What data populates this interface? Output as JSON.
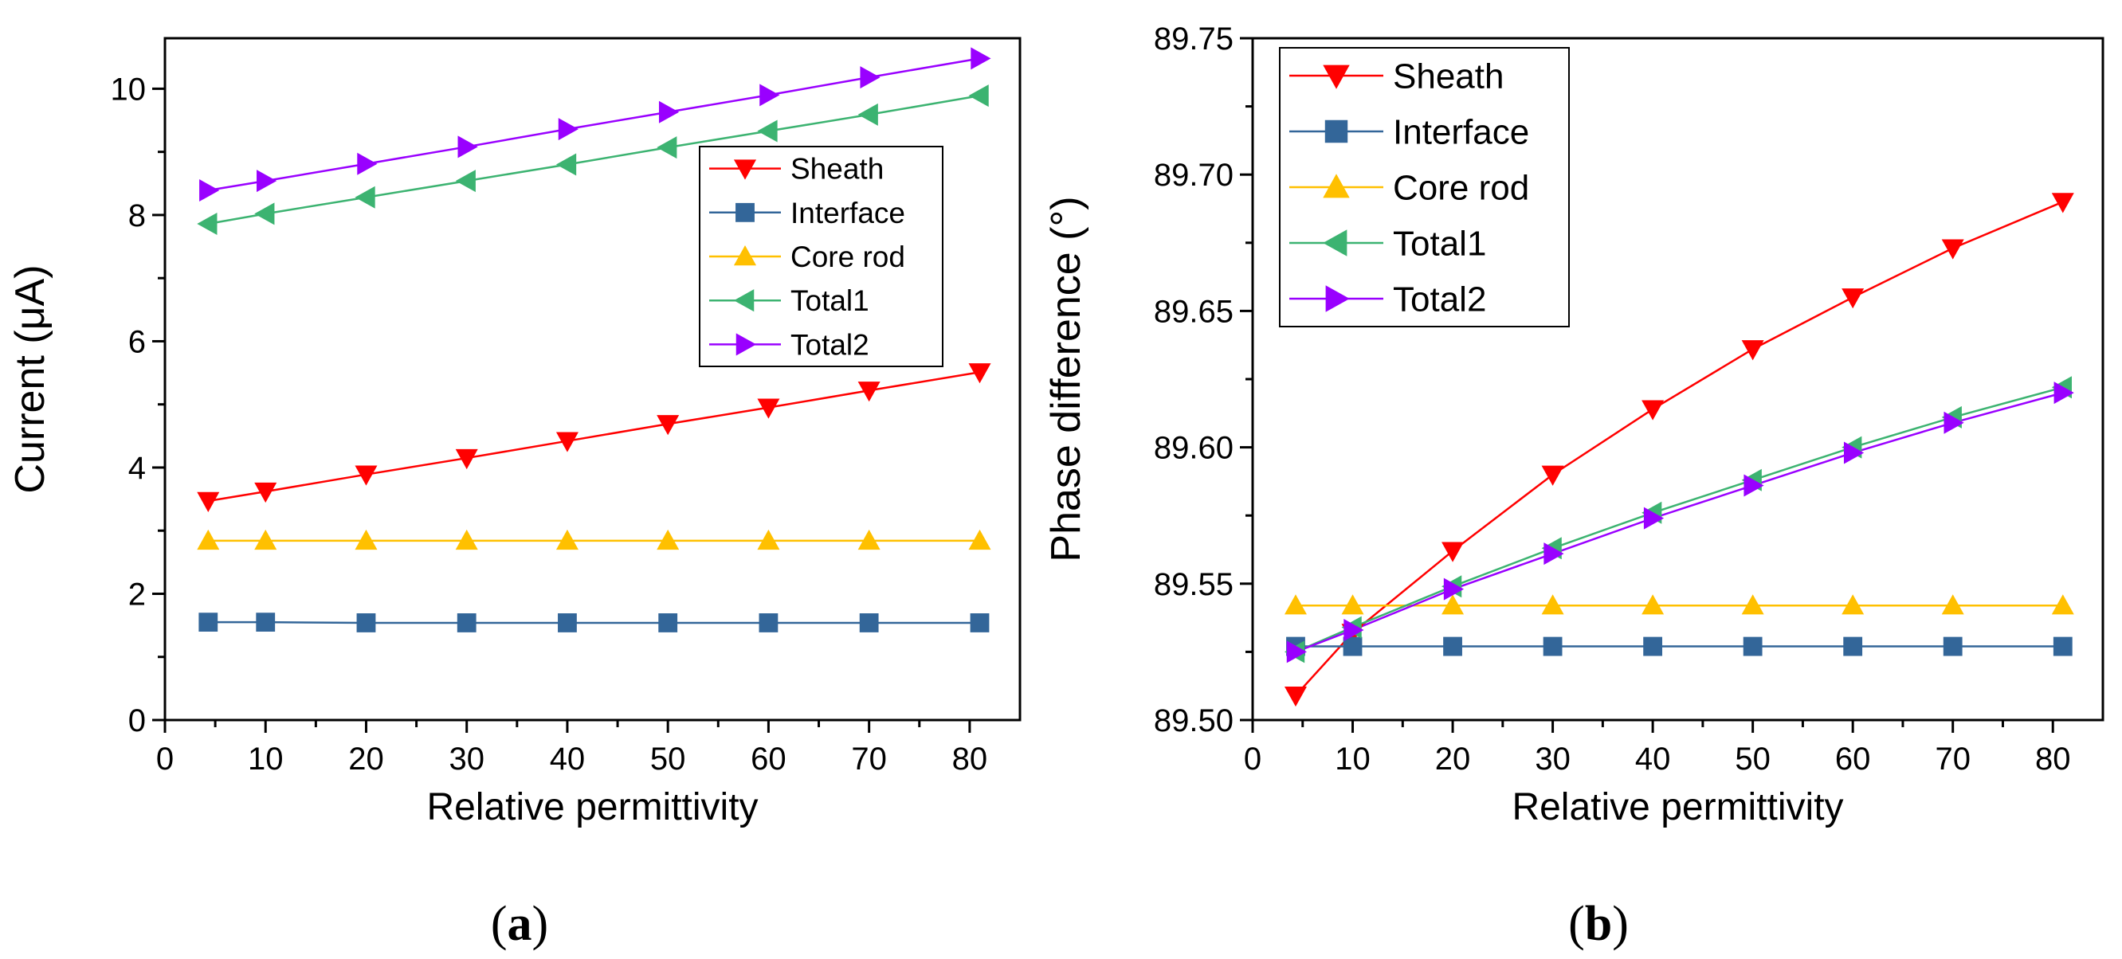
{
  "chart_data": [
    {
      "type": "line",
      "panel_label": "(a)",
      "panel_letter": "a",
      "xlabel": "Relative permittivity",
      "ylabel": "Current (μA)",
      "xlim": [
        0,
        85
      ],
      "ylim": [
        0,
        10.8
      ],
      "xticks": [
        0,
        10,
        20,
        30,
        40,
        50,
        60,
        70,
        80
      ],
      "yticks": [
        0,
        2,
        4,
        6,
        8,
        10
      ],
      "ytick_decimals": 0,
      "x": [
        4.3,
        10,
        20,
        30,
        40,
        50,
        60,
        70,
        81
      ],
      "legend_position": "right",
      "series": [
        {
          "name": "Sheath",
          "color": "#ff0000",
          "marker": "triangle-down",
          "values": [
            3.47,
            3.62,
            3.89,
            4.15,
            4.42,
            4.69,
            4.95,
            5.22,
            5.51
          ]
        },
        {
          "name": "Interface",
          "color": "#336699",
          "marker": "square",
          "values": [
            1.55,
            1.55,
            1.54,
            1.54,
            1.54,
            1.54,
            1.54,
            1.54,
            1.54
          ]
        },
        {
          "name": "Core rod",
          "color": "#ffc000",
          "marker": "triangle-up",
          "values": [
            2.84,
            2.84,
            2.84,
            2.84,
            2.84,
            2.84,
            2.84,
            2.84,
            2.84
          ]
        },
        {
          "name": "Total1",
          "color": "#3cb371",
          "marker": "triangle-left",
          "values": [
            7.86,
            8.02,
            8.28,
            8.54,
            8.8,
            9.07,
            9.33,
            9.59,
            9.89
          ]
        },
        {
          "name": "Total2",
          "color": "#9900ff",
          "marker": "triangle-right",
          "values": [
            8.39,
            8.54,
            8.81,
            9.08,
            9.36,
            9.63,
            9.9,
            10.18,
            10.48
          ]
        }
      ]
    },
    {
      "type": "line",
      "panel_label": "(b)",
      "panel_letter": "b",
      "xlabel": "Relative permittivity",
      "ylabel": "Phase difference (°)",
      "xlim": [
        0,
        85
      ],
      "ylim": [
        89.5,
        89.75
      ],
      "xticks": [
        0,
        10,
        20,
        30,
        40,
        50,
        60,
        70,
        80
      ],
      "yticks": [
        89.5,
        89.55,
        89.6,
        89.65,
        89.7,
        89.75
      ],
      "ytick_decimals": 2,
      "x": [
        4.3,
        10,
        20,
        30,
        40,
        50,
        60,
        70,
        81
      ],
      "legend_position": "top-left",
      "series": [
        {
          "name": "Sheath",
          "color": "#ff0000",
          "marker": "triangle-down",
          "values": [
            89.509,
            89.532,
            89.562,
            89.59,
            89.614,
            89.636,
            89.655,
            89.673,
            89.69
          ]
        },
        {
          "name": "Interface",
          "color": "#336699",
          "marker": "square",
          "values": [
            89.527,
            89.527,
            89.527,
            89.527,
            89.527,
            89.527,
            89.527,
            89.527,
            89.527
          ]
        },
        {
          "name": "Core rod",
          "color": "#ffc000",
          "marker": "triangle-up",
          "values": [
            89.542,
            89.542,
            89.542,
            89.542,
            89.542,
            89.542,
            89.542,
            89.542,
            89.542
          ]
        },
        {
          "name": "Total1",
          "color": "#3cb371",
          "marker": "triangle-left",
          "values": [
            89.525,
            89.534,
            89.549,
            89.563,
            89.576,
            89.588,
            89.6,
            89.611,
            89.622
          ]
        },
        {
          "name": "Total2",
          "color": "#9900ff",
          "marker": "triangle-right",
          "values": [
            89.525,
            89.533,
            89.548,
            89.561,
            89.574,
            89.586,
            89.598,
            89.609,
            89.62
          ]
        }
      ]
    }
  ]
}
